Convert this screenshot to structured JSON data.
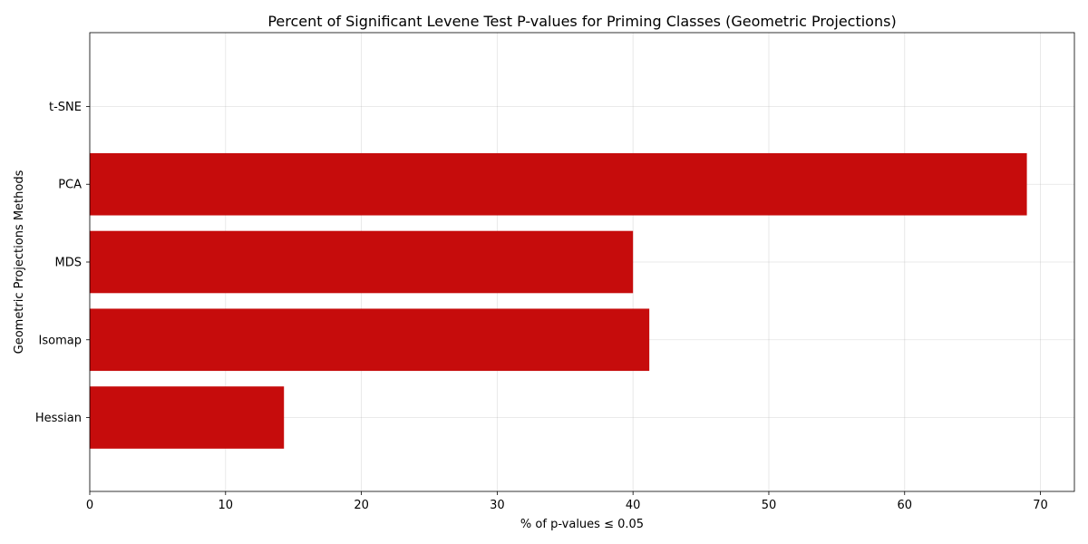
{
  "chart_data": {
    "type": "bar",
    "orientation": "horizontal",
    "title": "Percent of Significant Levene Test P-values for Priming Classes (Geometric Projections)",
    "xlabel": "% of p-values ≤ 0.05",
    "ylabel": "Geometric Projections Methods",
    "categories": [
      "Hessian",
      "Isomap",
      "MDS",
      "PCA",
      "t-SNE"
    ],
    "values": [
      14.3,
      41.2,
      40.0,
      69.0,
      0.0
    ],
    "xlim": [
      0,
      72.5
    ],
    "xticks": [
      0,
      10,
      20,
      30,
      40,
      50,
      60,
      70
    ],
    "xtick_labels": [
      "0",
      "10",
      "20",
      "30",
      "40",
      "50",
      "60",
      "70"
    ],
    "grid": true,
    "bar_color": "#c60c0c"
  }
}
